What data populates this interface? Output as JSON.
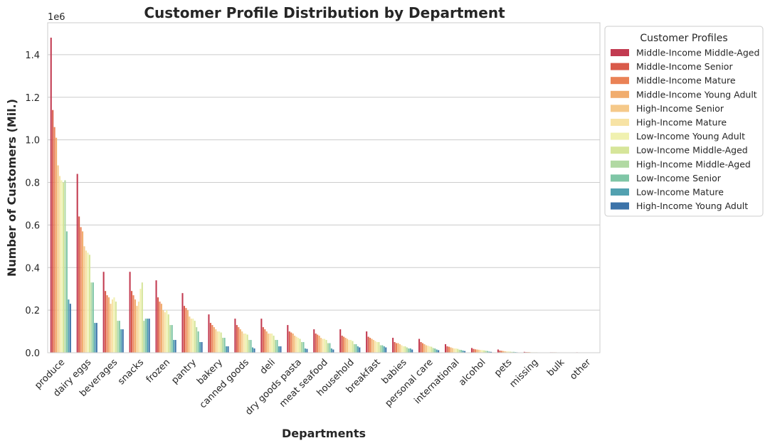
{
  "chart_data": {
    "type": "bar",
    "title": "Customer Profile Distribution by Department",
    "xlabel": "Departments",
    "ylabel": "Number of Customers (Mil.)",
    "y_scale_note": "1e6",
    "ylim": [
      0,
      1.55
    ],
    "y_ticks": [
      "0.0",
      "0.2",
      "0.4",
      "0.6",
      "0.8",
      "1.0",
      "1.2",
      "1.4"
    ],
    "grid": true,
    "legend_title": "Customer Profiles",
    "legend_position": "upper-right-outside",
    "categories": [
      "produce",
      "dairy eggs",
      "beverages",
      "snacks",
      "frozen",
      "pantry",
      "bakery",
      "canned goods",
      "deli",
      "dry goods pasta",
      "meat seafood",
      "household",
      "breakfast",
      "babies",
      "personal care",
      "international",
      "alcohol",
      "pets",
      "missing",
      "bulk",
      "other"
    ],
    "series": [
      {
        "name": "Middle-Income Middle-Aged",
        "color": "#c23a50",
        "values": [
          1.48,
          0.84,
          0.38,
          0.38,
          0.34,
          0.28,
          0.18,
          0.16,
          0.16,
          0.13,
          0.11,
          0.11,
          0.1,
          0.07,
          0.065,
          0.04,
          0.022,
          0.015,
          0.004,
          0.002,
          0.002
        ]
      },
      {
        "name": "Middle-Income Senior",
        "color": "#d95a4a",
        "values": [
          1.14,
          0.64,
          0.29,
          0.29,
          0.26,
          0.22,
          0.14,
          0.13,
          0.12,
          0.1,
          0.09,
          0.08,
          0.075,
          0.05,
          0.05,
          0.03,
          0.018,
          0.01,
          0.003,
          0.002,
          0.001
        ]
      },
      {
        "name": "Middle-Income Mature",
        "color": "#ea8256",
        "values": [
          1.06,
          0.59,
          0.27,
          0.27,
          0.24,
          0.21,
          0.13,
          0.12,
          0.11,
          0.095,
          0.085,
          0.075,
          0.07,
          0.045,
          0.045,
          0.028,
          0.016,
          0.009,
          0.003,
          0.002,
          0.001
        ]
      },
      {
        "name": "Middle-Income Young Adult",
        "color": "#f1ad6e",
        "values": [
          1.01,
          0.57,
          0.26,
          0.25,
          0.23,
          0.2,
          0.12,
          0.11,
          0.1,
          0.09,
          0.08,
          0.07,
          0.065,
          0.045,
          0.04,
          0.025,
          0.015,
          0.008,
          0.003,
          0.002,
          0.001
        ]
      },
      {
        "name": "High-Income Senior",
        "color": "#f5c98a",
        "values": [
          0.88,
          0.5,
          0.23,
          0.22,
          0.2,
          0.17,
          0.11,
          0.1,
          0.09,
          0.08,
          0.07,
          0.065,
          0.06,
          0.04,
          0.035,
          0.022,
          0.014,
          0.007,
          0.002,
          0.001,
          0.001
        ]
      },
      {
        "name": "High-Income Mature",
        "color": "#f7e3a5",
        "values": [
          0.83,
          0.48,
          0.25,
          0.24,
          0.19,
          0.16,
          0.1,
          0.09,
          0.09,
          0.075,
          0.065,
          0.06,
          0.055,
          0.035,
          0.033,
          0.02,
          0.013,
          0.006,
          0.002,
          0.001,
          0.001
        ]
      },
      {
        "name": "Low-Income Young Adult",
        "color": "#f0f1b0",
        "values": [
          0.81,
          0.47,
          0.26,
          0.3,
          0.2,
          0.16,
          0.1,
          0.09,
          0.09,
          0.07,
          0.065,
          0.06,
          0.05,
          0.03,
          0.03,
          0.02,
          0.012,
          0.006,
          0.002,
          0.001,
          0.001
        ]
      },
      {
        "name": "Low-Income Middle-Aged",
        "color": "#d6e59a",
        "values": [
          0.8,
          0.46,
          0.24,
          0.33,
          0.18,
          0.15,
          0.095,
          0.085,
          0.08,
          0.065,
          0.06,
          0.055,
          0.05,
          0.03,
          0.028,
          0.018,
          0.011,
          0.005,
          0.002,
          0.001,
          0.001
        ]
      },
      {
        "name": "High-Income Middle-Aged",
        "color": "#b1d9a3",
        "values": [
          0.81,
          0.33,
          0.15,
          0.15,
          0.13,
          0.12,
          0.07,
          0.06,
          0.06,
          0.05,
          0.045,
          0.04,
          0.035,
          0.025,
          0.022,
          0.014,
          0.009,
          0.004,
          0.001,
          0.001,
          0.0005
        ]
      },
      {
        "name": "Low-Income Senior",
        "color": "#7fc6a6",
        "values": [
          0.57,
          0.33,
          0.15,
          0.16,
          0.13,
          0.1,
          0.07,
          0.06,
          0.06,
          0.05,
          0.045,
          0.04,
          0.035,
          0.02,
          0.02,
          0.013,
          0.008,
          0.004,
          0.001,
          0.001,
          0.0005
        ]
      },
      {
        "name": "Low-Income Mature",
        "color": "#52a1b0",
        "values": [
          0.25,
          0.14,
          0.11,
          0.16,
          0.06,
          0.05,
          0.03,
          0.025,
          0.03,
          0.02,
          0.02,
          0.03,
          0.03,
          0.02,
          0.015,
          0.01,
          0.005,
          0.003,
          0.001,
          0.0005,
          0.0003
        ]
      },
      {
        "name": "High-Income Young Adult",
        "color": "#3b73a9",
        "values": [
          0.23,
          0.14,
          0.11,
          0.16,
          0.06,
          0.05,
          0.03,
          0.02,
          0.03,
          0.018,
          0.015,
          0.025,
          0.025,
          0.015,
          0.012,
          0.008,
          0.004,
          0.002,
          0.0008,
          0.0004,
          0.0002
        ]
      }
    ]
  }
}
